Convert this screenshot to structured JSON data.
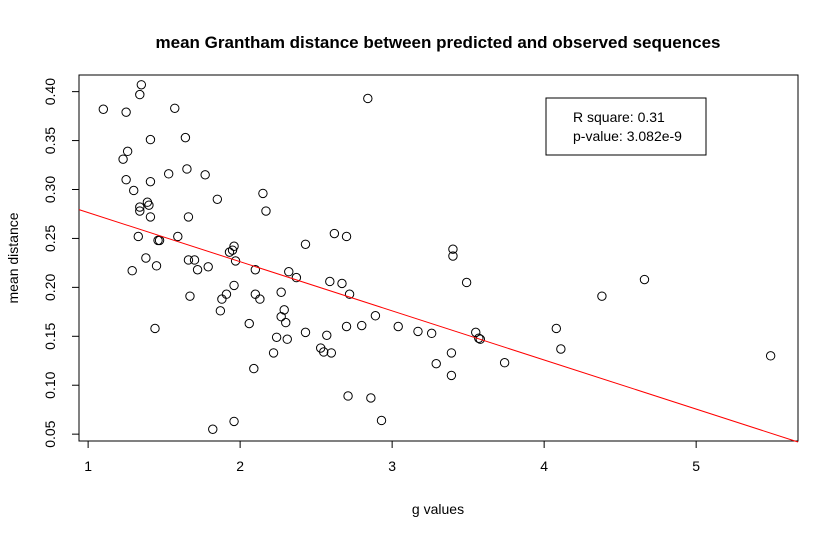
{
  "chart_data": {
    "type": "scatter",
    "title": "mean Grantham distance between predicted and observed sequences",
    "xlabel": "g values",
    "ylabel": "mean distance",
    "xlim": [
      0.94,
      5.67
    ],
    "ylim": [
      0.043,
      0.417
    ],
    "x_ticks": [
      "1",
      "2",
      "3",
      "4",
      "5"
    ],
    "y_ticks": [
      "0.05",
      "0.10",
      "0.15",
      "0.20",
      "0.25",
      "0.30",
      "0.35",
      "0.40"
    ],
    "grid": false,
    "point_style": "open-circle",
    "point_color": "#000000",
    "regression_line": {
      "color": "#ff0000",
      "intercept": 0.3266,
      "slope": -0.0502
    },
    "legend": {
      "position": "top-right",
      "lines": [
        "R square: 0.31",
        "p-value: 3.082e-9"
      ]
    },
    "points": [
      [
        1.1,
        0.382
      ],
      [
        1.23,
        0.331
      ],
      [
        1.25,
        0.379
      ],
      [
        1.25,
        0.31
      ],
      [
        1.26,
        0.339
      ],
      [
        1.29,
        0.217
      ],
      [
        1.3,
        0.299
      ],
      [
        1.33,
        0.252
      ],
      [
        1.34,
        0.278
      ],
      [
        1.34,
        0.282
      ],
      [
        1.34,
        0.397
      ],
      [
        1.35,
        0.407
      ],
      [
        1.38,
        0.23
      ],
      [
        1.39,
        0.287
      ],
      [
        1.4,
        0.284
      ],
      [
        1.41,
        0.351
      ],
      [
        1.41,
        0.308
      ],
      [
        1.41,
        0.272
      ],
      [
        1.44,
        0.158
      ],
      [
        1.45,
        0.222
      ],
      [
        1.46,
        0.248
      ],
      [
        1.47,
        0.248
      ],
      [
        1.53,
        0.316
      ],
      [
        1.57,
        0.383
      ],
      [
        1.59,
        0.252
      ],
      [
        1.64,
        0.353
      ],
      [
        1.65,
        0.321
      ],
      [
        1.66,
        0.272
      ],
      [
        1.66,
        0.228
      ],
      [
        1.67,
        0.191
      ],
      [
        1.7,
        0.228
      ],
      [
        1.72,
        0.218
      ],
      [
        1.77,
        0.315
      ],
      [
        1.79,
        0.221
      ],
      [
        1.82,
        0.055
      ],
      [
        1.85,
        0.29
      ],
      [
        1.87,
        0.176
      ],
      [
        1.88,
        0.188
      ],
      [
        1.91,
        0.193
      ],
      [
        1.93,
        0.236
      ],
      [
        1.95,
        0.238
      ],
      [
        1.96,
        0.242
      ],
      [
        1.96,
        0.063
      ],
      [
        1.96,
        0.202
      ],
      [
        1.97,
        0.227
      ],
      [
        2.06,
        0.163
      ],
      [
        2.09,
        0.117
      ],
      [
        2.1,
        0.218
      ],
      [
        2.1,
        0.193
      ],
      [
        2.13,
        0.188
      ],
      [
        2.15,
        0.296
      ],
      [
        2.17,
        0.278
      ],
      [
        2.22,
        0.133
      ],
      [
        2.24,
        0.149
      ],
      [
        2.27,
        0.195
      ],
      [
        2.27,
        0.17
      ],
      [
        2.29,
        0.177
      ],
      [
        2.3,
        0.164
      ],
      [
        2.31,
        0.147
      ],
      [
        2.32,
        0.216
      ],
      [
        2.37,
        0.21
      ],
      [
        2.43,
        0.154
      ],
      [
        2.43,
        0.244
      ],
      [
        2.53,
        0.138
      ],
      [
        2.55,
        0.134
      ],
      [
        2.57,
        0.151
      ],
      [
        2.59,
        0.206
      ],
      [
        2.6,
        0.133
      ],
      [
        2.62,
        0.255
      ],
      [
        2.67,
        0.204
      ],
      [
        2.7,
        0.252
      ],
      [
        2.7,
        0.16
      ],
      [
        2.71,
        0.089
      ],
      [
        2.72,
        0.193
      ],
      [
        2.8,
        0.161
      ],
      [
        2.84,
        0.393
      ],
      [
        2.86,
        0.087
      ],
      [
        2.89,
        0.171
      ],
      [
        2.93,
        0.064
      ],
      [
        3.04,
        0.16
      ],
      [
        3.17,
        0.155
      ],
      [
        3.26,
        0.153
      ],
      [
        3.29,
        0.122
      ],
      [
        3.39,
        0.133
      ],
      [
        3.39,
        0.11
      ],
      [
        3.4,
        0.239
      ],
      [
        3.4,
        0.232
      ],
      [
        3.49,
        0.205
      ],
      [
        3.55,
        0.154
      ],
      [
        3.57,
        0.148
      ],
      [
        3.58,
        0.147
      ],
      [
        3.74,
        0.123
      ],
      [
        4.08,
        0.158
      ],
      [
        4.11,
        0.137
      ],
      [
        4.38,
        0.191
      ],
      [
        4.66,
        0.208
      ],
      [
        5.49,
        0.13
      ]
    ]
  }
}
